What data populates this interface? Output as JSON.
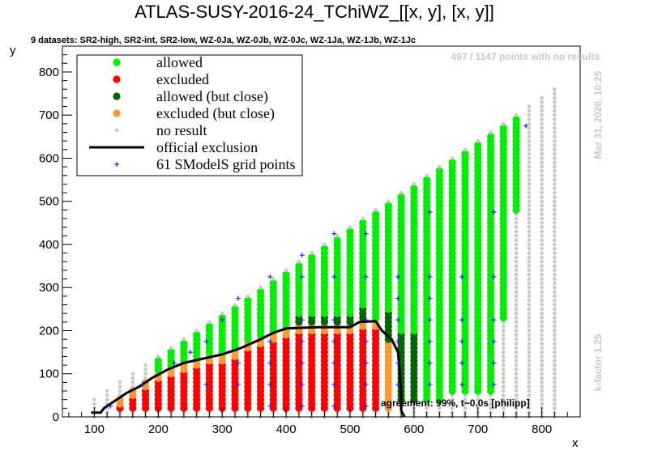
{
  "chart_data": {
    "type": "scatter",
    "title": "ATLAS-SUSY-2016-24_TChiWZ_[[x, y], [x, y]]",
    "subtitle": "9 datasets: SR2-high, SR2-int, SR2-low, WZ-0Ja, WZ-0Jb, WZ-0Jc, WZ-1Ja, WZ-1Jb, WZ-1Jc",
    "xlabel": "x",
    "ylabel": "y",
    "xlim": [
      50,
      860
    ],
    "ylim": [
      0,
      860
    ],
    "xticks": [
      100,
      200,
      300,
      400,
      500,
      600,
      700,
      800
    ],
    "yticks": [
      0,
      100,
      200,
      300,
      400,
      500,
      600,
      700,
      800
    ],
    "no_result_note": "497 / 1147 points with no results",
    "timestamp": "Mar 31, 2020, 10:25",
    "kfactor": "k-factor 1.25",
    "agreement": "agreement: 99%, t~0.0s [philipp]",
    "legend_position": "top-left",
    "colors": {
      "allowed": "#00ee00",
      "excluded": "#ff0000",
      "allowed_close": "#006400",
      "excluded_close": "#ff9933",
      "no_result": "#c8c8c8",
      "official": "#000000",
      "grid_points": "#2222ff"
    },
    "legend": [
      {
        "key": "allowed",
        "label": "allowed"
      },
      {
        "key": "excluded",
        "label": "excluded"
      },
      {
        "key": "allowed_close",
        "label": "allowed (but close)"
      },
      {
        "key": "excluded_close",
        "label": "excluded (but close)"
      },
      {
        "key": "no_result",
        "label": "no result"
      },
      {
        "key": "official",
        "label": "official exclusion"
      },
      {
        "key": "grid_points",
        "label": "61 SModelS grid points"
      }
    ],
    "official_exclusion": [
      [
        95,
        10
      ],
      [
        100,
        10
      ],
      [
        110,
        10
      ],
      [
        115,
        20
      ],
      [
        130,
        35
      ],
      [
        150,
        55
      ],
      [
        170,
        70
      ],
      [
        190,
        90
      ],
      [
        215,
        110
      ],
      [
        240,
        125
      ],
      [
        270,
        135
      ],
      [
        300,
        145
      ],
      [
        330,
        160
      ],
      [
        360,
        180
      ],
      [
        380,
        195
      ],
      [
        400,
        205
      ],
      [
        450,
        208
      ],
      [
        500,
        208
      ],
      [
        515,
        220
      ],
      [
        540,
        222
      ],
      [
        550,
        200
      ],
      [
        565,
        180
      ],
      [
        575,
        150
      ],
      [
        578,
        100
      ],
      [
        580,
        50
      ],
      [
        580,
        15
      ],
      [
        585,
        0
      ]
    ],
    "smodels_grid_points": [
      [
        125,
        25
      ],
      [
        175,
        75
      ],
      [
        225,
        125
      ],
      [
        250,
        150
      ],
      [
        275,
        175
      ],
      [
        300,
        225
      ],
      [
        325,
        275
      ],
      [
        375,
        325
      ],
      [
        425,
        375
      ],
      [
        475,
        425
      ],
      [
        525,
        425
      ],
      [
        625,
        475
      ],
      [
        725,
        475
      ],
      [
        775,
        675
      ],
      [
        275,
        75
      ],
      [
        325,
        75
      ],
      [
        375,
        75
      ],
      [
        425,
        75
      ],
      [
        475,
        75
      ],
      [
        525,
        75
      ],
      [
        575,
        75
      ],
      [
        625,
        75
      ],
      [
        675,
        75
      ],
      [
        725,
        75
      ],
      [
        325,
        125
      ],
      [
        375,
        125
      ],
      [
        425,
        125
      ],
      [
        475,
        125
      ],
      [
        525,
        125
      ],
      [
        575,
        125
      ],
      [
        625,
        125
      ],
      [
        675,
        125
      ],
      [
        725,
        125
      ],
      [
        375,
        175
      ],
      [
        425,
        175
      ],
      [
        475,
        175
      ],
      [
        525,
        175
      ],
      [
        575,
        175
      ],
      [
        625,
        175
      ],
      [
        675,
        175
      ],
      [
        725,
        175
      ],
      [
        425,
        225
      ],
      [
        475,
        225
      ],
      [
        525,
        225
      ],
      [
        575,
        225
      ],
      [
        625,
        225
      ],
      [
        675,
        225
      ],
      [
        725,
        225
      ],
      [
        425,
        325
      ],
      [
        475,
        325
      ],
      [
        525,
        325
      ],
      [
        575,
        325
      ],
      [
        625,
        325
      ],
      [
        675,
        325
      ],
      [
        725,
        325
      ],
      [
        375,
        25
      ],
      [
        425,
        25
      ],
      [
        525,
        25
      ],
      [
        475,
        25
      ],
      [
        575,
        275
      ],
      [
        625,
        275
      ]
    ]
  }
}
